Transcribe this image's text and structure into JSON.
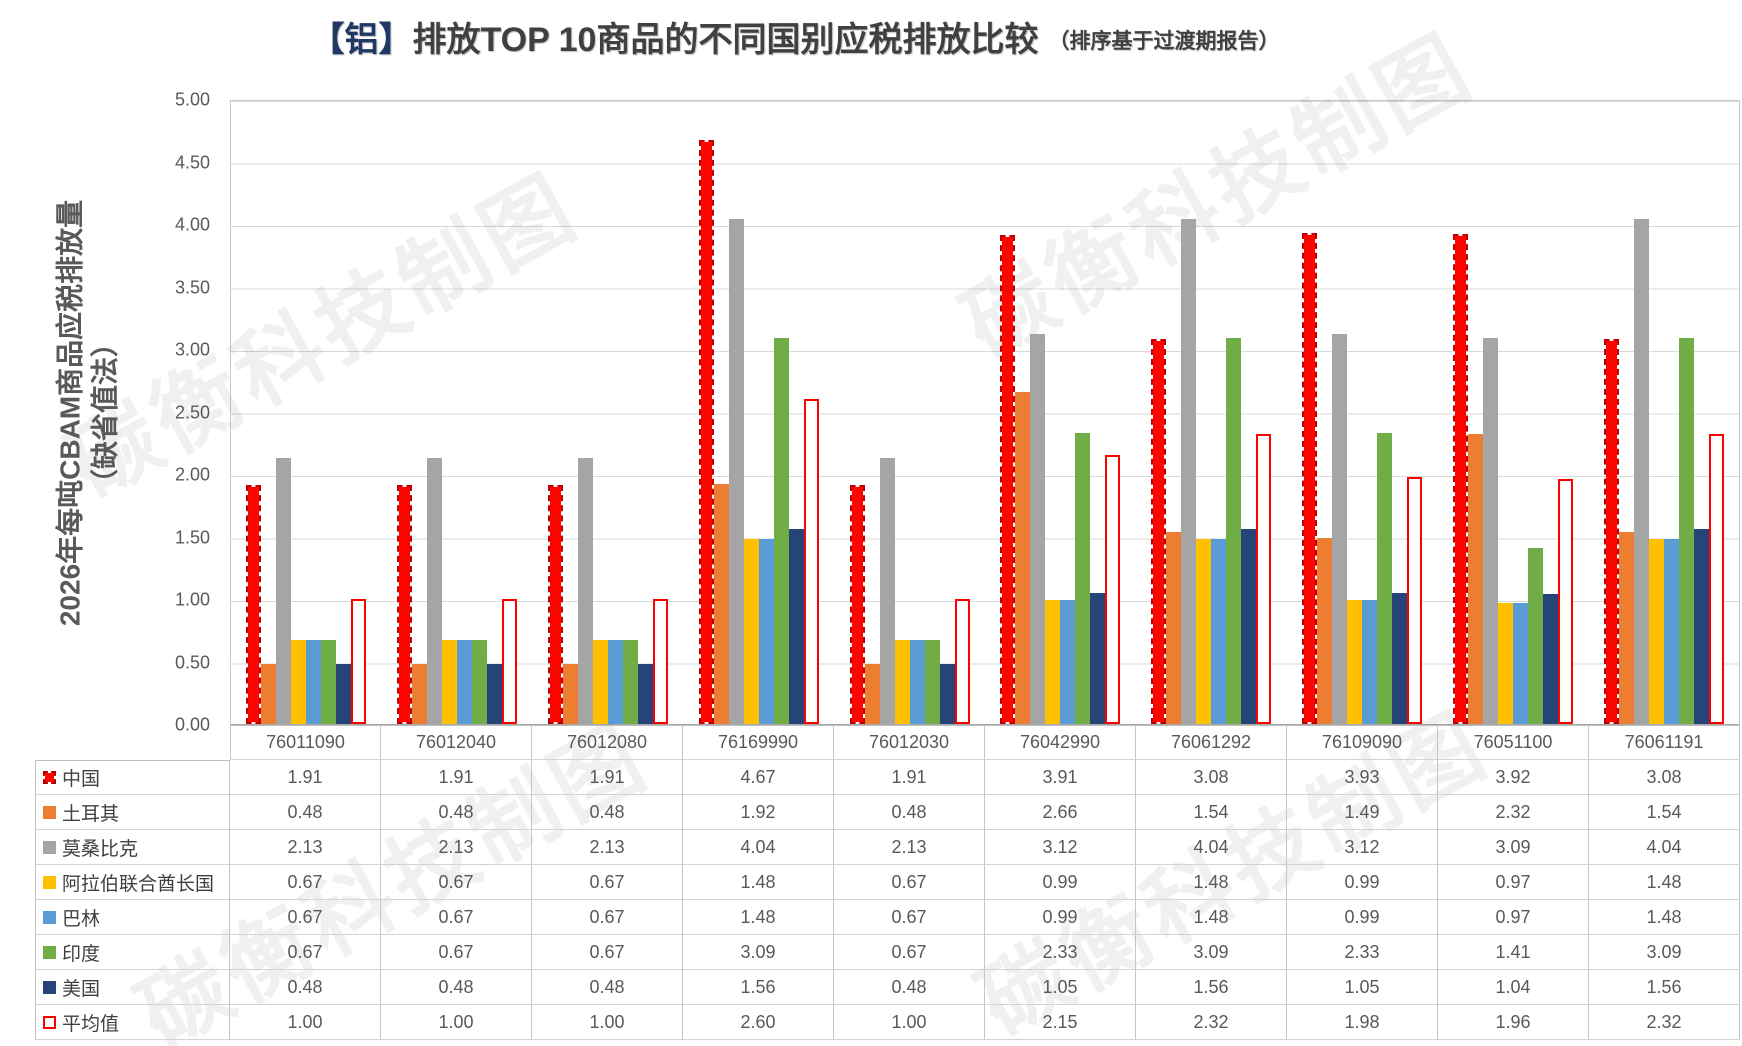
{
  "title": {
    "prefix": "【铝】",
    "main": "排放TOP 10商品的不同国别应税排放比较",
    "suffix": "（排序基于过渡期报告）"
  },
  "watermark": "碳衡科技制图",
  "chart_data": {
    "type": "bar",
    "title": "【铝】排放TOP 10商品的不同国别应税排放比较（排序基于过渡期报告）",
    "ylabel_line1": "2026年每吨CBAM商品应税排放量",
    "ylabel_line2": "（缺省值法）",
    "xlabel": "",
    "ylim": [
      0,
      5
    ],
    "ytick_labels": [
      "5.00",
      "4.50",
      "4.00",
      "3.50",
      "3.00",
      "2.50",
      "2.00",
      "1.50",
      "1.00",
      "0.50",
      "0.00"
    ],
    "grid": true,
    "legend_position": "table-left-column",
    "categories": [
      "76011090",
      "76012040",
      "76012080",
      "76169990",
      "76012030",
      "76042990",
      "76061292",
      "76109090",
      "76051100",
      "76061191"
    ],
    "series": [
      {
        "name": "中国",
        "color": "#FE0500",
        "style": "dashed-red",
        "values": [
          1.91,
          1.91,
          1.91,
          4.67,
          1.91,
          3.91,
          3.08,
          3.93,
          3.92,
          3.08
        ]
      },
      {
        "name": "土耳其",
        "color": "#ED7D31",
        "style": "solid",
        "values": [
          0.48,
          0.48,
          0.48,
          1.92,
          0.48,
          2.66,
          1.54,
          1.49,
          2.32,
          1.54
        ]
      },
      {
        "name": "莫桑比克",
        "color": "#A5A5A5",
        "style": "solid",
        "values": [
          2.13,
          2.13,
          2.13,
          4.04,
          2.13,
          3.12,
          4.04,
          3.12,
          3.09,
          4.04
        ]
      },
      {
        "name": "阿拉伯联合酋长国",
        "color": "#FFC000",
        "style": "solid",
        "values": [
          0.67,
          0.67,
          0.67,
          1.48,
          0.67,
          0.99,
          1.48,
          0.99,
          0.97,
          1.48
        ]
      },
      {
        "name": "巴林",
        "color": "#5B9BD5",
        "style": "solid",
        "values": [
          0.67,
          0.67,
          0.67,
          1.48,
          0.67,
          0.99,
          1.48,
          0.99,
          0.97,
          1.48
        ]
      },
      {
        "name": "印度",
        "color": "#70AD47",
        "style": "solid",
        "values": [
          0.67,
          0.67,
          0.67,
          3.09,
          0.67,
          2.33,
          3.09,
          2.33,
          1.41,
          3.09
        ]
      },
      {
        "name": "美国",
        "color": "#264478",
        "style": "solid",
        "values": [
          0.48,
          0.48,
          0.48,
          1.56,
          0.48,
          1.05,
          1.56,
          1.05,
          1.04,
          1.56
        ]
      },
      {
        "name": "平均值",
        "color": "#FFFFFF",
        "style": "outline-red",
        "values": [
          1.0,
          1.0,
          1.0,
          2.6,
          1.0,
          2.15,
          2.32,
          1.98,
          1.96,
          2.32
        ]
      }
    ]
  }
}
